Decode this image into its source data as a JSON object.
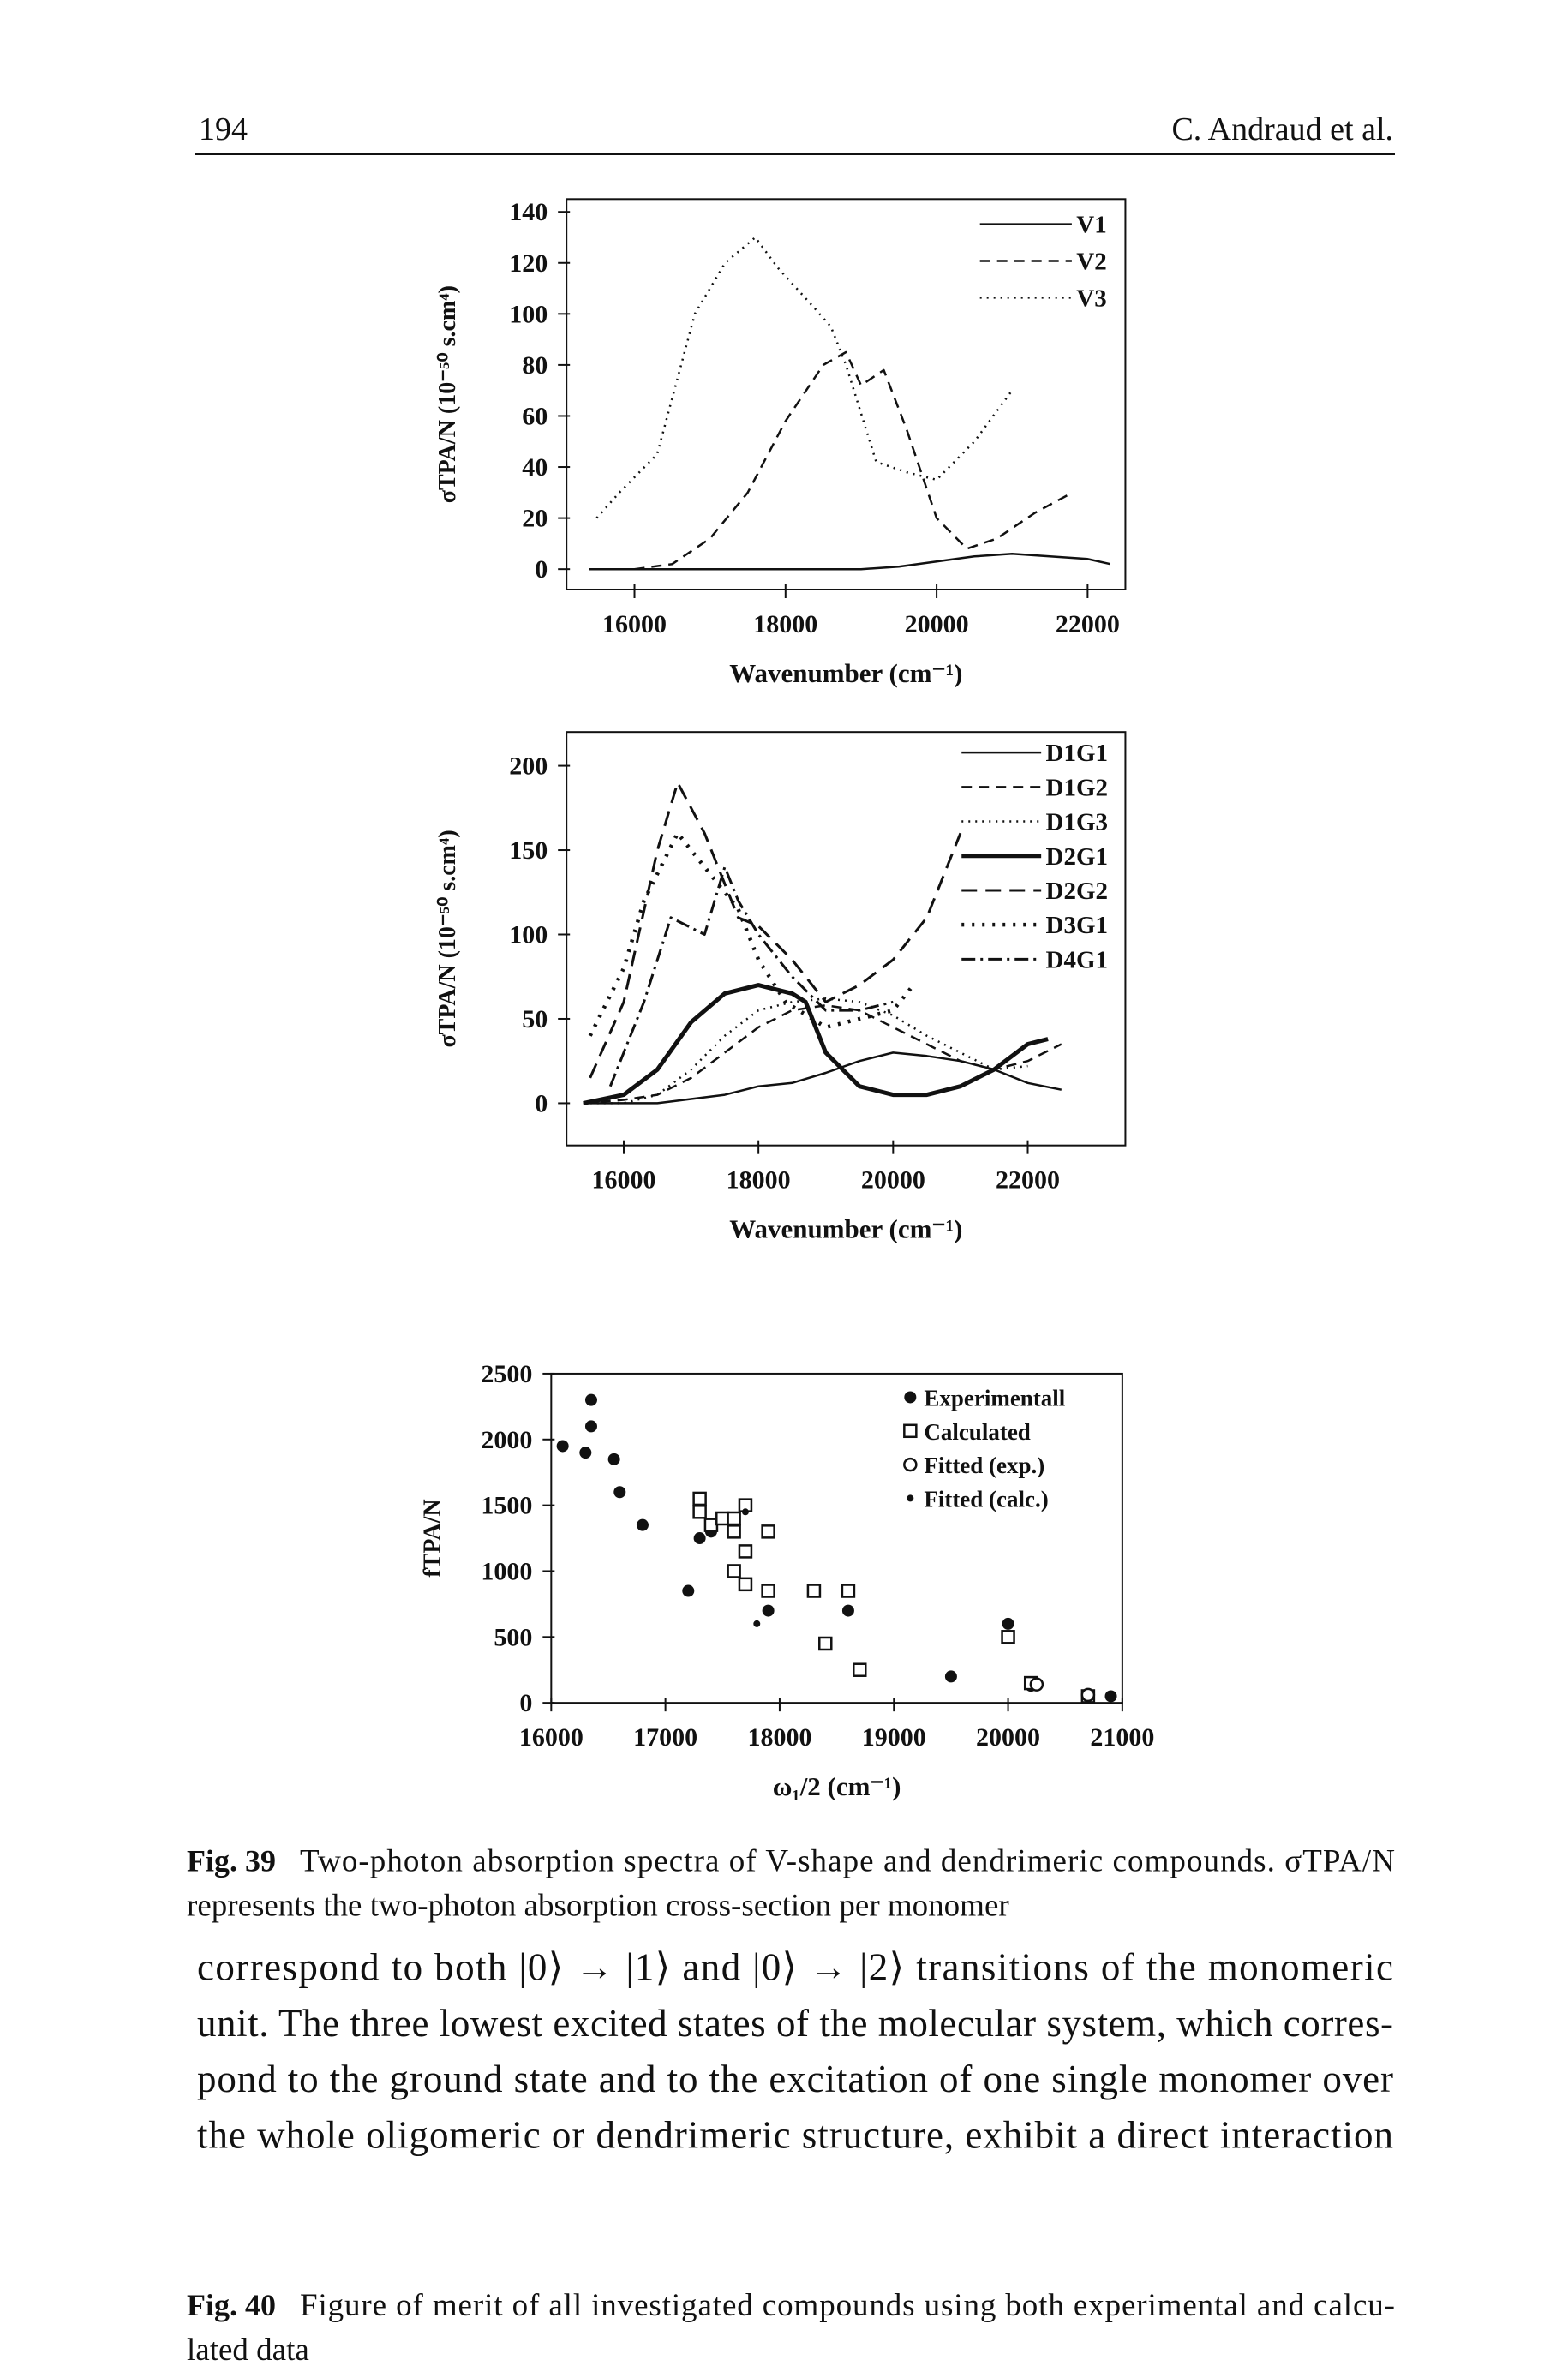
{
  "header": {
    "page": "194",
    "author": "C. Andraud et al."
  },
  "chart_data": [
    {
      "type": "line",
      "xlabel": "Wavenumber (cm⁻¹)",
      "ylabel": "σTPA/N (10⁻⁵⁰ s.cm⁴)",
      "xlim": [
        15100,
        22500
      ],
      "ylim": [
        -8,
        145
      ],
      "xticks": [
        16000,
        18000,
        20000,
        22000
      ],
      "yticks": [
        0,
        20,
        40,
        60,
        80,
        100,
        120,
        140
      ],
      "series": [
        {
          "name": "V1",
          "color": "#111111",
          "style": "solid",
          "x": [
            15400,
            16000,
            17000,
            18000,
            19000,
            19500,
            20000,
            20500,
            21000,
            21500,
            22000,
            22300
          ],
          "values": [
            0,
            0,
            0,
            0,
            0,
            1,
            3,
            5,
            6,
            5,
            4,
            2
          ]
        },
        {
          "name": "V2",
          "color": "#111111",
          "style": "dashed",
          "x": [
            16000,
            16500,
            17000,
            17500,
            18000,
            18500,
            18800,
            19000,
            19300,
            19600,
            20000,
            20400,
            20800,
            21300,
            21800
          ],
          "values": [
            0,
            2,
            12,
            30,
            58,
            80,
            85,
            72,
            78,
            55,
            20,
            8,
            12,
            22,
            30
          ]
        },
        {
          "name": "V3",
          "color": "#111111",
          "style": "dotted",
          "x": [
            15500,
            15800,
            16300,
            16800,
            17200,
            17600,
            17900,
            18300,
            18600,
            18800,
            19200,
            19600,
            20000,
            20500,
            21000
          ],
          "values": [
            20,
            30,
            45,
            100,
            120,
            130,
            118,
            105,
            95,
            80,
            42,
            38,
            35,
            50,
            70
          ]
        }
      ]
    },
    {
      "type": "line",
      "xlabel": "Wavenumber (cm⁻¹)",
      "ylabel": "σTPA/N (10⁻⁵⁰ s.cm⁴)",
      "xlim": [
        15150,
        23450
      ],
      "ylim": [
        -25,
        220
      ],
      "xticks": [
        16000,
        18000,
        20000,
        22000
      ],
      "yticks": [
        0,
        50,
        100,
        150,
        200
      ],
      "series": [
        {
          "name": "D1G1",
          "color": "#111111",
          "style": "solid",
          "x": [
            15400,
            16500,
            17500,
            18000,
            18500,
            19000,
            19500,
            20000,
            20500,
            21000,
            21500,
            22000,
            22500
          ],
          "values": [
            0,
            0,
            5,
            10,
            12,
            18,
            25,
            30,
            28,
            25,
            20,
            12,
            8
          ]
        },
        {
          "name": "D1G2",
          "color": "#111111",
          "style": "dashed",
          "x": [
            15400,
            16000,
            16500,
            17000,
            17500,
            18000,
            18500,
            19000,
            19500,
            20000,
            20500,
            21000,
            21500,
            22000,
            22500
          ],
          "values": [
            0,
            2,
            5,
            15,
            30,
            45,
            55,
            58,
            55,
            45,
            35,
            25,
            20,
            25,
            35
          ]
        },
        {
          "name": "D1G3",
          "color": "#111111",
          "style": "dotted",
          "x": [
            15400,
            16000,
            16500,
            17000,
            17500,
            18000,
            18500,
            19000,
            19500,
            20000,
            20500,
            21000,
            21500,
            22000
          ],
          "values": [
            0,
            0,
            5,
            20,
            40,
            55,
            60,
            62,
            60,
            52,
            40,
            30,
            20,
            22
          ]
        },
        {
          "name": "D2G1",
          "color": "#111111",
          "style": "thick",
          "x": [
            15400,
            16000,
            16500,
            17000,
            17500,
            18000,
            18500,
            18700,
            19000,
            19500,
            20000,
            20500,
            21000,
            21500,
            22000,
            22300
          ],
          "values": [
            0,
            5,
            20,
            48,
            65,
            70,
            65,
            60,
            30,
            10,
            5,
            5,
            10,
            20,
            35,
            38
          ]
        },
        {
          "name": "D2G2",
          "color": "#111111",
          "style": "long-dashed",
          "x": [
            15500,
            16000,
            16500,
            16800,
            17200,
            17700,
            18000,
            18500,
            19000,
            19500,
            20000,
            20500,
            21000
          ],
          "values": [
            15,
            60,
            150,
            190,
            160,
            110,
            105,
            85,
            60,
            70,
            85,
            110,
            160
          ]
        },
        {
          "name": "D3G1",
          "color": "#111111",
          "style": "dotted-bold",
          "x": [
            15500,
            16000,
            16300,
            16800,
            17200,
            17700,
            18000,
            18400,
            19000,
            19500,
            20000,
            20300
          ],
          "values": [
            40,
            80,
            120,
            160,
            140,
            115,
            85,
            60,
            45,
            50,
            55,
            70
          ]
        },
        {
          "name": "D4G1",
          "color": "#111111",
          "style": "dash-dot",
          "x": [
            15800,
            16300,
            16700,
            17200,
            17500,
            17700,
            18000,
            18500,
            19000,
            19500,
            20000
          ],
          "values": [
            10,
            60,
            110,
            100,
            140,
            120,
            100,
            75,
            55,
            55,
            60
          ]
        }
      ]
    },
    {
      "type": "scatter",
      "xlabel": "ω₁/2 (cm⁻¹)",
      "ylabel": "fTPA/N",
      "xlim": [
        16000,
        21000
      ],
      "ylim": [
        0,
        2500
      ],
      "xticks": [
        16000,
        17000,
        18000,
        19000,
        20000,
        21000
      ],
      "yticks": [
        0,
        500,
        1000,
        1500,
        2000,
        2500
      ],
      "series": [
        {
          "name": "Experimentall",
          "color": "#111111",
          "marker": "filled-circle",
          "x": [
            16350,
            16350,
            16100,
            16300,
            16550,
            16600,
            16800,
            17400,
            17300,
            17200,
            17900,
            18600,
            19500,
            20000,
            20200,
            20900
          ],
          "values": [
            2300,
            2100,
            1950,
            1900,
            1850,
            1600,
            1350,
            1300,
            1250,
            850,
            700,
            700,
            200,
            600,
            130,
            50
          ]
        },
        {
          "name": "Calculated",
          "color": "#111111",
          "marker": "open-square",
          "x": [
            17300,
            17300,
            17400,
            17500,
            17600,
            17700,
            17600,
            17700,
            17900,
            17600,
            17700,
            17900,
            18300,
            18600,
            18400,
            18700,
            20000,
            20200,
            20700
          ],
          "values": [
            1450,
            1550,
            1350,
            1400,
            1300,
            1150,
            1400,
            1500,
            1300,
            1000,
            900,
            850,
            850,
            850,
            450,
            250,
            500,
            150,
            50
          ]
        },
        {
          "name": "Fitted (exp.)",
          "color": "#111111",
          "marker": "open-circle",
          "x": [
            20250,
            20700
          ],
          "values": [
            140,
            60
          ]
        },
        {
          "name": "Fitted (calc.)",
          "color": "#111111",
          "marker": "dot",
          "x": [
            17700,
            17800,
            19500,
            20900
          ],
          "values": [
            1450,
            600,
            200,
            60
          ]
        }
      ]
    }
  ],
  "captions": [
    {
      "label": "Fig. 39",
      "lines": [
        "Two-photon absorption spectra of V-shape and dendrimeric compounds. σTPA/N",
        "represents the two-photon absorption cross-section per monomer"
      ]
    },
    {
      "label": "Fig. 40",
      "lines": [
        "Figure of merit of all investigated compounds using both experimental and calcu-",
        "lated data"
      ]
    }
  ],
  "body": {
    "lines": [
      "correspond to both |0⟩ → |1⟩ and |0⟩ → |2⟩ transitions of the monomeric",
      "unit. The three lowest excited states of the molecular system, which corres-",
      "pond to the ground state and to the excitation of one single monomer over",
      "the whole oligomeric or dendrimeric structure, exhibit a direct interaction"
    ]
  }
}
